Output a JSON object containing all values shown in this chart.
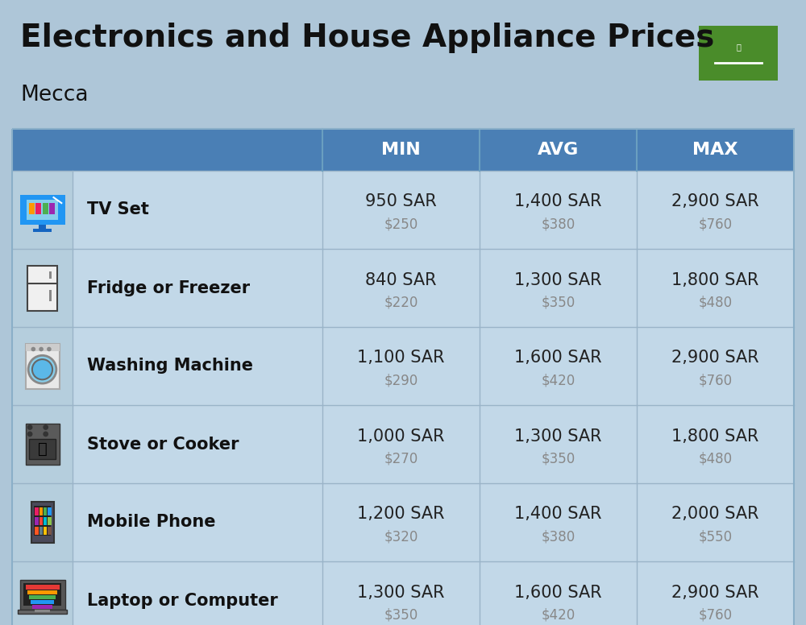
{
  "title": "Electronics and House Appliance Prices",
  "subtitle": "Mecca",
  "bg_color": "#aec6d8",
  "header_color": "#4a7fb5",
  "header_text_color": "#ffffff",
  "row_bg_light": "#c2d8e8",
  "icon_col_bg": "#b5cedd",
  "item_name_color": "#111111",
  "sar_color": "#222222",
  "usd_color": "#888888",
  "divider_color": "#9ab4c8",
  "columns": [
    "MIN",
    "AVG",
    "MAX"
  ],
  "rows": [
    {
      "name": "TV Set",
      "min_sar": "950 SAR",
      "min_usd": "$250",
      "avg_sar": "1,400 SAR",
      "avg_usd": "$380",
      "max_sar": "2,900 SAR",
      "max_usd": "$760"
    },
    {
      "name": "Fridge or Freezer",
      "min_sar": "840 SAR",
      "min_usd": "$220",
      "avg_sar": "1,300 SAR",
      "avg_usd": "$350",
      "max_sar": "1,800 SAR",
      "max_usd": "$480"
    },
    {
      "name": "Washing Machine",
      "min_sar": "1,100 SAR",
      "min_usd": "$290",
      "avg_sar": "1,600 SAR",
      "avg_usd": "$420",
      "max_sar": "2,900 SAR",
      "max_usd": "$760"
    },
    {
      "name": "Stove or Cooker",
      "min_sar": "1,000 SAR",
      "min_usd": "$270",
      "avg_sar": "1,300 SAR",
      "avg_usd": "$350",
      "max_sar": "1,800 SAR",
      "max_usd": "$480"
    },
    {
      "name": "Mobile Phone",
      "min_sar": "1,200 SAR",
      "min_usd": "$320",
      "avg_sar": "1,400 SAR",
      "avg_usd": "$380",
      "max_sar": "2,000 SAR",
      "max_usd": "$550"
    },
    {
      "name": "Laptop or Computer",
      "min_sar": "1,300 SAR",
      "min_usd": "$350",
      "avg_sar": "1,600 SAR",
      "avg_usd": "$420",
      "max_sar": "2,900 SAR",
      "max_usd": "$760"
    }
  ],
  "flag_green": "#4a8c2a",
  "title_fontsize": 28,
  "subtitle_fontsize": 19,
  "header_fontsize": 16,
  "name_fontsize": 15,
  "sar_fontsize": 15,
  "usd_fontsize": 12
}
